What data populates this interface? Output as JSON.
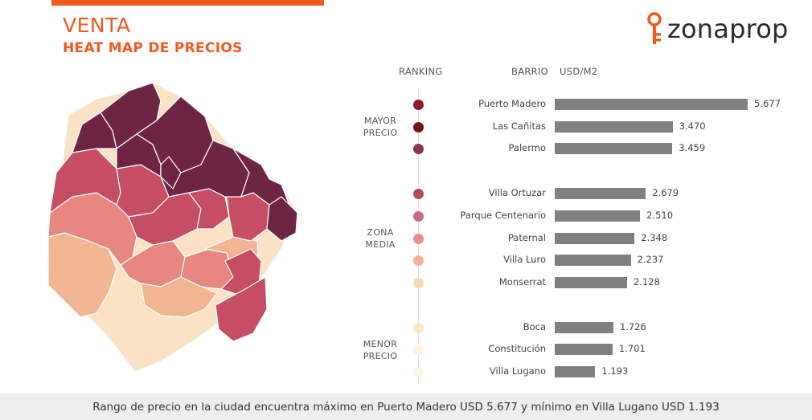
{
  "header": {
    "title": "VENTA",
    "subtitle": "HEAT MAP DE PRECIOS",
    "brand": "zonaprop",
    "accent": "#f15a1f"
  },
  "chart_data": {
    "type": "bar",
    "orientation": "horizontal",
    "columns": {
      "ranking": "RANKING",
      "barrio": "BARRIO",
      "unit": "USD/M2"
    },
    "groups": [
      {
        "label_lines": [
          "MAYOR",
          "PRECIO"
        ],
        "start": 0,
        "end": 2
      },
      {
        "label_lines": [
          "ZONA",
          "MEDIA"
        ],
        "start": 3,
        "end": 7
      },
      {
        "label_lines": [
          "MENOR",
          "PRECIO"
        ],
        "start": 8,
        "end": 10
      }
    ],
    "categories": [
      "Puerto Madero",
      "Las Cañitas",
      "Palermo",
      "Villa Ortuzar",
      "Parque Centenario",
      "Paternal",
      "Villa Luro",
      "Monserrat",
      "Boca",
      "Constitución",
      "Villa Lugano"
    ],
    "values": [
      5677,
      3470,
      3459,
      2679,
      2510,
      2348,
      2237,
      2128,
      1726,
      1701,
      1193
    ],
    "value_labels": [
      "5.677",
      "3.470",
      "3.459",
      "2.679",
      "2.510",
      "2.348",
      "2.237",
      "2.128",
      "1.726",
      "1.701",
      "1.193"
    ],
    "rank_colors": [
      "#8b1a2a",
      "#7a0f1c",
      "#8a3552",
      "#b84a5e",
      "#c96a7c",
      "#e48f8a",
      "#f5b096",
      "#f8d9b4",
      "#fbe8c6",
      "#fdf3df",
      "#fdf5e6"
    ],
    "xlim": [
      0,
      5677
    ],
    "bar_color": "#808080"
  },
  "map_colors": [
    "#6e2545",
    "#c54d64",
    "#e7877f",
    "#f2b592",
    "#fae2c5"
  ],
  "footer": {
    "text": "Rango de precio en la ciudad encuentra máximo en Puerto Madero USD 5.677 y mínimo en Villa Lugano USD 1.193"
  }
}
